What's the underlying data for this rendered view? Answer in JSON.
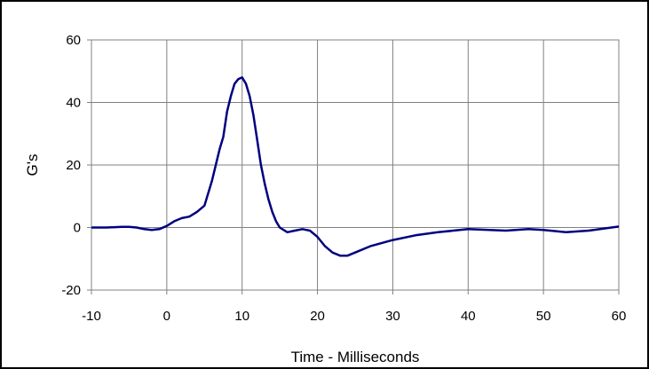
{
  "chart_data": {
    "type": "line",
    "title": "",
    "xlabel": "Time - Milliseconds",
    "ylabel": "G's",
    "xlim": [
      -10,
      60
    ],
    "ylim": [
      -20,
      60
    ],
    "x_ticks": [
      -10,
      0,
      10,
      20,
      30,
      40,
      50,
      60
    ],
    "y_ticks": [
      -20,
      0,
      20,
      40,
      60
    ],
    "grid": true,
    "legend": "none",
    "colors": {
      "series": "#000080",
      "grid": "#808080",
      "axis": "#000000",
      "frame": "#000000"
    },
    "series": [
      {
        "x": [
          -10,
          -8,
          -6,
          -5,
          -4,
          -3,
          -2,
          -1,
          0,
          1,
          2,
          3,
          4,
          5,
          6,
          7,
          7.5,
          8,
          8.5,
          9,
          9.5,
          10,
          10.5,
          11,
          11.5,
          12,
          12.5,
          13,
          13.5,
          14,
          14.5,
          15,
          16,
          17,
          18,
          19,
          20,
          21,
          22,
          23,
          24,
          25,
          27,
          30,
          33,
          36,
          40,
          45,
          48,
          50,
          53,
          56,
          60
        ],
        "y": [
          0,
          0,
          0.2,
          0.2,
          0,
          -0.5,
          -0.8,
          -0.5,
          0.5,
          2,
          3,
          3.5,
          5,
          7,
          15,
          25,
          29,
          37,
          42,
          46,
          47.5,
          48,
          46,
          42,
          36,
          28,
          20,
          14,
          9,
          5,
          2,
          0,
          -1.5,
          -1,
          -0.5,
          -1,
          -3,
          -6,
          -8,
          -9,
          -9,
          -8,
          -6,
          -4,
          -2.5,
          -1.5,
          -0.5,
          -1,
          -0.5,
          -0.8,
          -1.5,
          -1,
          0.3
        ]
      }
    ]
  }
}
